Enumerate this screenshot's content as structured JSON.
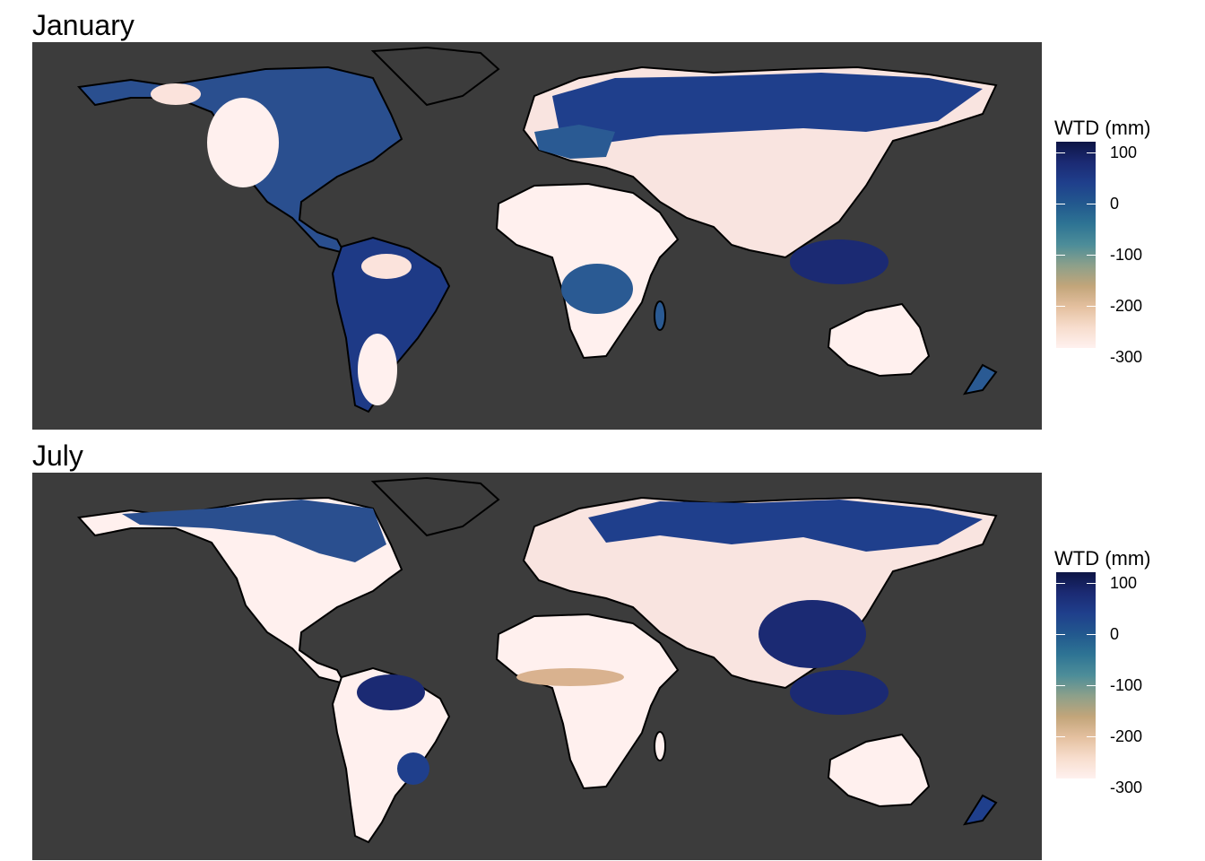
{
  "panels": [
    {
      "title": "January",
      "legend": {
        "title": "WTD (mm)",
        "ticks": [
          "100",
          "0",
          "-100",
          "-200",
          "-300"
        ]
      },
      "land_fill": {
        "north_america": "#2a4f8f",
        "south_america": "#1e3a86",
        "eurasia": "#f9e4e0",
        "africa": "#fff0ee",
        "australia": "#fff0ee"
      }
    },
    {
      "title": "July",
      "legend": {
        "title": "WTD (mm)",
        "ticks": [
          "100",
          "0",
          "-100",
          "-200",
          "-300"
        ]
      },
      "land_fill": {
        "north_america": "#fff0ee",
        "south_america": "#f9e4e0",
        "eurasia": "#f9e4e0",
        "africa": "#fff0ee",
        "australia": "#fff0ee"
      }
    }
  ],
  "colors": {
    "ocean": "#3c3c3c",
    "coast": "#000000",
    "wet": "#1b2a73",
    "mid": "#4d8d99",
    "dry": "#fff1ef"
  }
}
